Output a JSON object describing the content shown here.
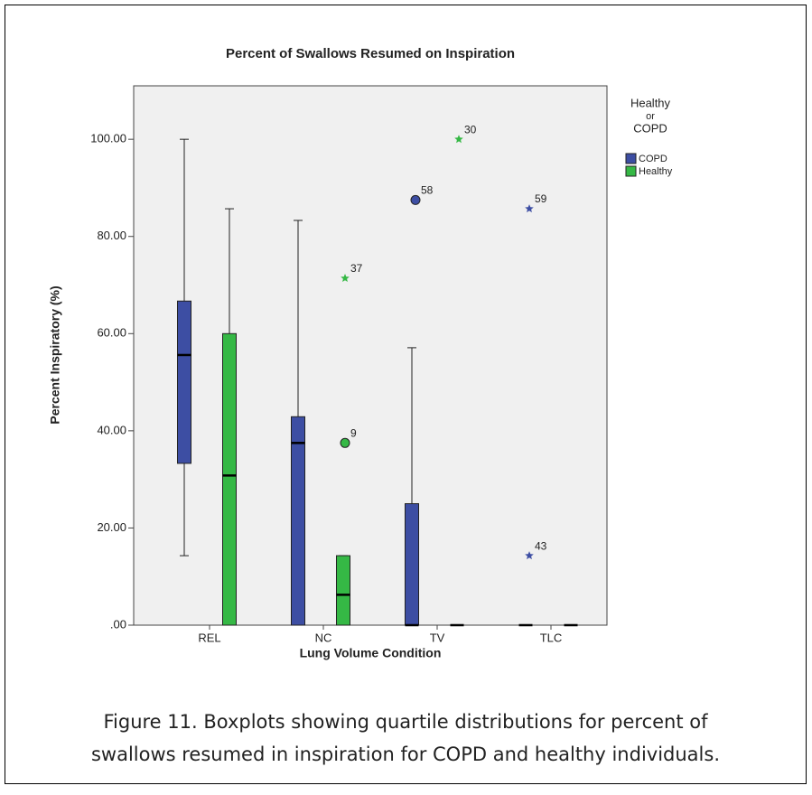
{
  "chart_data": {
    "type": "boxplot",
    "title": "Percent of Swallows Resumed on Inspiration",
    "x_label": "Lung Volume Condition",
    "y_label": "Percent Inspiratory (%)",
    "categories": [
      "REL",
      "NC",
      "TV",
      "TLC"
    ],
    "ylim": [
      0,
      111
    ],
    "yticks": [
      {
        "value": 0,
        "label": ".00"
      },
      {
        "value": 20,
        "label": "20.00"
      },
      {
        "value": 40,
        "label": "40.00"
      },
      {
        "value": 60,
        "label": "60.00"
      },
      {
        "value": 80,
        "label": "80.00"
      },
      {
        "value": 100,
        "label": "100.00"
      }
    ],
    "legend_title": [
      "Healthy",
      "or",
      "COPD"
    ],
    "series": [
      {
        "name": "COPD",
        "color": "#3d4ea3",
        "boxes": [
          {
            "min": 14.3,
            "q1": 33.3,
            "median": 55.6,
            "q3": 66.7,
            "max": 100,
            "outliers": []
          },
          {
            "min": 0,
            "q1": 0,
            "median": 37.5,
            "q3": 42.9,
            "max": 83.3,
            "outliers": []
          },
          {
            "min": 0,
            "q1": 0,
            "median": 0,
            "q3": 25,
            "max": 57.1,
            "outliers": [
              {
                "value": 87.5,
                "label": "58",
                "marker": "circle"
              }
            ]
          },
          {
            "min": 0,
            "q1": 0,
            "median": 0,
            "q3": 0,
            "max": 0,
            "outliers": [
              {
                "value": 85.7,
                "label": "59",
                "marker": "star"
              },
              {
                "value": 14.3,
                "label": "43",
                "marker": "star"
              }
            ]
          }
        ]
      },
      {
        "name": "Healthy",
        "color": "#35b845",
        "boxes": [
          {
            "min": 0,
            "q1": 0,
            "median": 30.8,
            "q3": 60,
            "max": 85.7,
            "outliers": []
          },
          {
            "min": 0,
            "q1": 0,
            "median": 6.25,
            "q3": 14.3,
            "max": 14.3,
            "outliers": [
              {
                "value": 37.5,
                "label": "9",
                "marker": "circle"
              },
              {
                "value": 71.4,
                "label": "37",
                "marker": "star"
              }
            ]
          },
          {
            "min": 0,
            "q1": 0,
            "median": 0,
            "q3": 0,
            "max": 0,
            "outliers": [
              {
                "value": 100,
                "label": "30",
                "marker": "star"
              }
            ]
          },
          {
            "min": 0,
            "q1": 0,
            "median": 0,
            "q3": 0,
            "max": 0,
            "outliers": []
          }
        ]
      }
    ],
    "caption": [
      "Figure 11. Boxplots showing quartile distributions for percent of",
      "swallows resumed in inspiration for COPD and healthy individuals."
    ]
  }
}
